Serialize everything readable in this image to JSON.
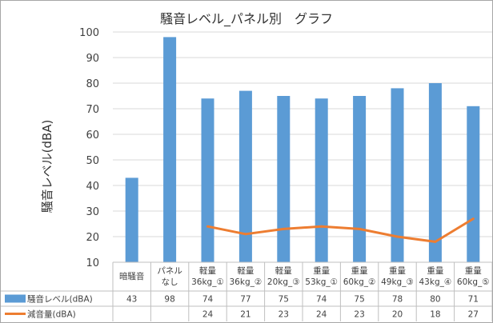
{
  "chart_data": {
    "type": "bar",
    "title": "騒音レベル_パネル別　グラフ",
    "ylabel": "騒音レベル(dBA)",
    "xlabel": "",
    "ylim": [
      10,
      100
    ],
    "yticks": [
      10,
      20,
      30,
      40,
      50,
      60,
      70,
      80,
      90,
      100
    ],
    "grid": true,
    "legend": "bottom-left data table",
    "categories": [
      [
        "暗騒音"
      ],
      [
        "パネル",
        "なし"
      ],
      [
        "軽量",
        "36kg_①"
      ],
      [
        "軽量",
        "36kg_②"
      ],
      [
        "軽量",
        "20kg_③"
      ],
      [
        "重量",
        "53kg_①"
      ],
      [
        "重量",
        "60kg_②"
      ],
      [
        "重量",
        "49kg_③"
      ],
      [
        "重量",
        "43kg_④"
      ],
      [
        "重量",
        "60kg_⑤"
      ]
    ],
    "series": [
      {
        "name": "騒音レベル(dBA)",
        "kind": "bar",
        "color": "#5b9bd5",
        "values": [
          43,
          98,
          74,
          77,
          75,
          74,
          75,
          78,
          80,
          71
        ]
      },
      {
        "name": "減音量(dBA)",
        "kind": "line",
        "color": "#ed7d31",
        "values": [
          null,
          null,
          24,
          21,
          23,
          24,
          23,
          20,
          18,
          27
        ]
      }
    ]
  }
}
